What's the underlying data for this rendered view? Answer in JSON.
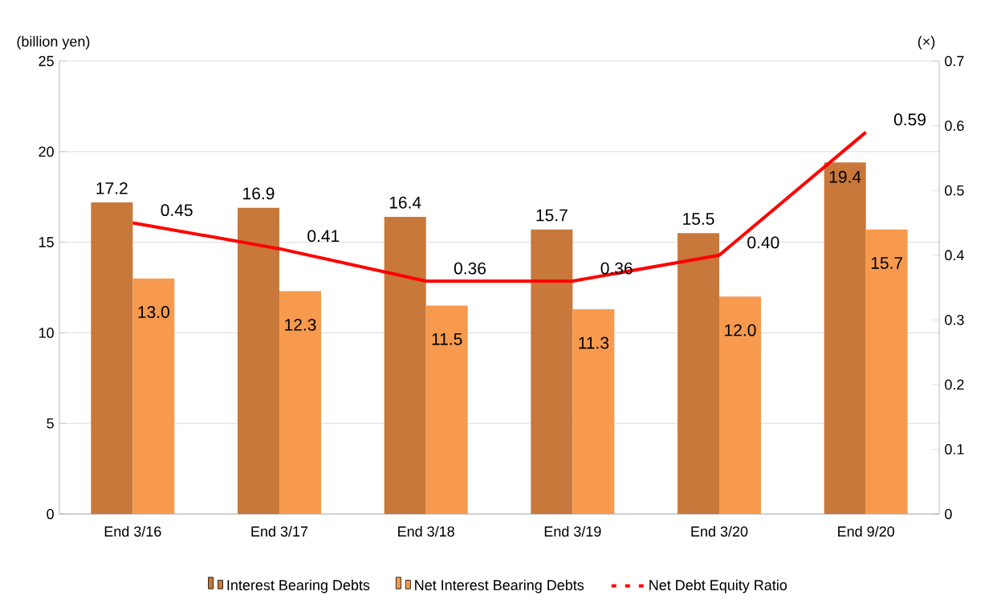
{
  "chart_data": {
    "type": "bar",
    "ylabel": "(billion yen)",
    "y2label": "(×)",
    "categories": [
      "End 3/16",
      "End 3/17",
      "End 3/18",
      "End 3/19",
      "End 3/20",
      "End 9/20"
    ],
    "series": [
      {
        "name": "Interest Bearing Debts",
        "color": "#c8783a",
        "values": [
          17.2,
          16.9,
          16.4,
          15.7,
          15.5,
          19.4
        ],
        "value_labels": [
          "17.2",
          "16.9",
          "16.4",
          "15.7",
          "15.5",
          "19.4"
        ]
      },
      {
        "name": "Net Interest Bearing Debts",
        "color": "#f79a4e",
        "values": [
          13.0,
          12.3,
          11.5,
          11.3,
          12.0,
          15.7
        ],
        "value_labels": [
          "13.0",
          "12.3",
          "11.5",
          "11.3",
          "12.0",
          "15.7"
        ]
      },
      {
        "name": "Net Debt Equity Ratio",
        "type": "line",
        "axis": "y2",
        "color": "#ff0000",
        "values": [
          0.45,
          0.41,
          0.36,
          0.36,
          0.4,
          0.59
        ],
        "value_labels": [
          "0.45",
          "0.41",
          "0.36",
          "0.36",
          "0.40",
          "0.59"
        ]
      }
    ],
    "ylim": [
      0,
      25
    ],
    "yticks": [
      0,
      5,
      10,
      15,
      20,
      25
    ],
    "y2lim": [
      0,
      0.7
    ],
    "y2ticks": [
      0,
      0.1,
      0.2,
      0.3,
      0.4,
      0.5,
      0.6,
      0.7
    ],
    "grid": "y",
    "legend": "bottom"
  }
}
